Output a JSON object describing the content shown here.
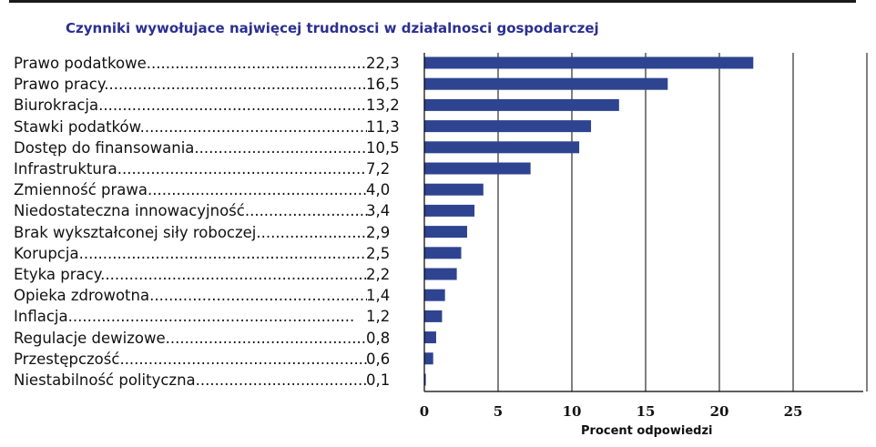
{
  "chart_data": {
    "type": "bar",
    "orientation": "horizontal",
    "title": "Czynniki wywołujace najwięcej trudnosci w działalnosci gospodarczej",
    "xlabel": "Procent odpowiedzi",
    "ylabel": "",
    "xlim": [
      0,
      30
    ],
    "xticks": [
      0,
      5,
      10,
      15,
      20,
      25
    ],
    "grid": "vertical",
    "legend": "none",
    "bar_color": "#2e4491",
    "categories": [
      "Prawo podatkowe",
      "Prawo pracy",
      "Biurokracja",
      "Stawki podatków",
      "Dostęp do finansowania",
      "Infrastruktura",
      "Zmienność prawa",
      "Niedostateczna innowacyjność",
      "Brak wykształconej siły roboczej",
      "Korupcja",
      "Etyka pracy",
      "Opieka zdrowotna",
      "Inflacja",
      "Regulacje dewizowe",
      "Przestępczość",
      "Niestabilność polityczna"
    ],
    "values": [
      22.3,
      16.5,
      13.2,
      11.3,
      10.5,
      7.2,
      4.0,
      3.4,
      2.9,
      2.5,
      2.2,
      1.4,
      1.2,
      0.8,
      0.6,
      0.1
    ],
    "value_labels": [
      "22,3",
      "16,5",
      "13,2",
      "11,3",
      "10,5",
      "7,2",
      "4,0",
      "3,4",
      "2,9",
      "2,5",
      "2,2",
      "1,4",
      "1,2",
      "0,8",
      "0,6",
      "0,1"
    ]
  }
}
